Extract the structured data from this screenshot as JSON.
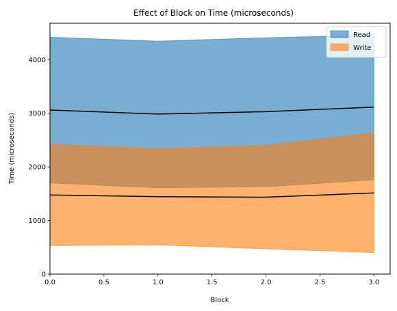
{
  "chart_data": {
    "type": "area",
    "title": "Effect of Block on Time (microseconds)",
    "xlabel": "Block",
    "ylabel": "Time (microseconds)",
    "xlim": [
      0,
      3.15
    ],
    "ylim": [
      0,
      4680
    ],
    "x_ticks": [
      "0.0",
      "0.5",
      "1.0",
      "1.5",
      "2.0",
      "2.5",
      "3.0"
    ],
    "x_tick_values": [
      0,
      0.5,
      1.0,
      1.5,
      2.0,
      2.5,
      3.0
    ],
    "y_ticks": [
      "0",
      "1000",
      "2000",
      "3000",
      "4000"
    ],
    "y_tick_values": [
      0,
      1000,
      2000,
      3000,
      4000
    ],
    "grid": false,
    "legend_position": "top-right",
    "x": [
      0,
      1,
      2,
      3
    ],
    "series": [
      {
        "name": "Read",
        "color": "#1f77b4",
        "lower": [
          1700,
          1610,
          1630,
          1760
        ],
        "mean": [
          3060,
          2985,
          3030,
          3115
        ],
        "upper": [
          4420,
          4345,
          4410,
          4460
        ]
      },
      {
        "name": "Write",
        "color": "#ff7f0e",
        "lower": [
          530,
          545,
          470,
          400
        ],
        "mean": [
          1475,
          1445,
          1435,
          1515
        ],
        "upper": [
          2420,
          2340,
          2400,
          2635
        ]
      }
    ]
  }
}
